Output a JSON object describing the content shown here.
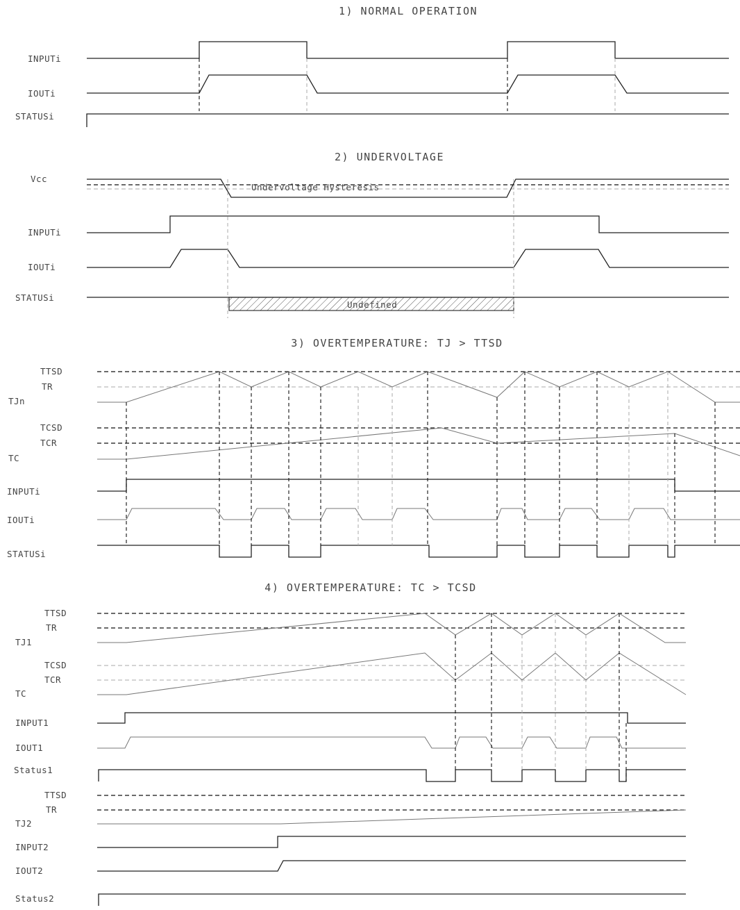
{
  "sections": {
    "normal": {
      "title": "1) NORMAL OPERATION",
      "labels": {
        "input": "INPUTi",
        "iout": "IOUTi",
        "status": "STATUSi"
      }
    },
    "undervoltage": {
      "title": "2) UNDERVOLTAGE",
      "labels": {
        "vcc": "Vcc",
        "input": "INPUTi",
        "iout": "IOUTi",
        "status": "STATUSi"
      },
      "hysteresis_note": "Undervoltage Hysteresis",
      "undefined_note": "Undefined"
    },
    "ot_junction": {
      "title": "3) OVERTEMPERATURE: TJ > TTSD",
      "labels": {
        "ttsd": "TTSD",
        "tr": "TR",
        "tjn": "TJn",
        "tcsd": "TCSD",
        "tcr": "TCR",
        "tc": "TC",
        "input": "INPUTi",
        "iout": "IOUTi",
        "status": "STATUSi"
      }
    },
    "ot_case": {
      "title": "4) OVERTEMPERATURE: TC > TCSD",
      "labels": {
        "ttsd": "TTSD",
        "tr": "TR",
        "tj1": "TJ1",
        "tcsd": "TCSD",
        "tcr": "TCR",
        "tc": "TC",
        "input1": "INPUT1",
        "iout1": "IOUT1",
        "status1": "Status1",
        "ttsd2": "TTSD",
        "tr2": "TR",
        "tj2": "TJ2",
        "input2": "INPUT2",
        "iout2": "IOUT2",
        "status2": "Status2"
      }
    }
  }
}
